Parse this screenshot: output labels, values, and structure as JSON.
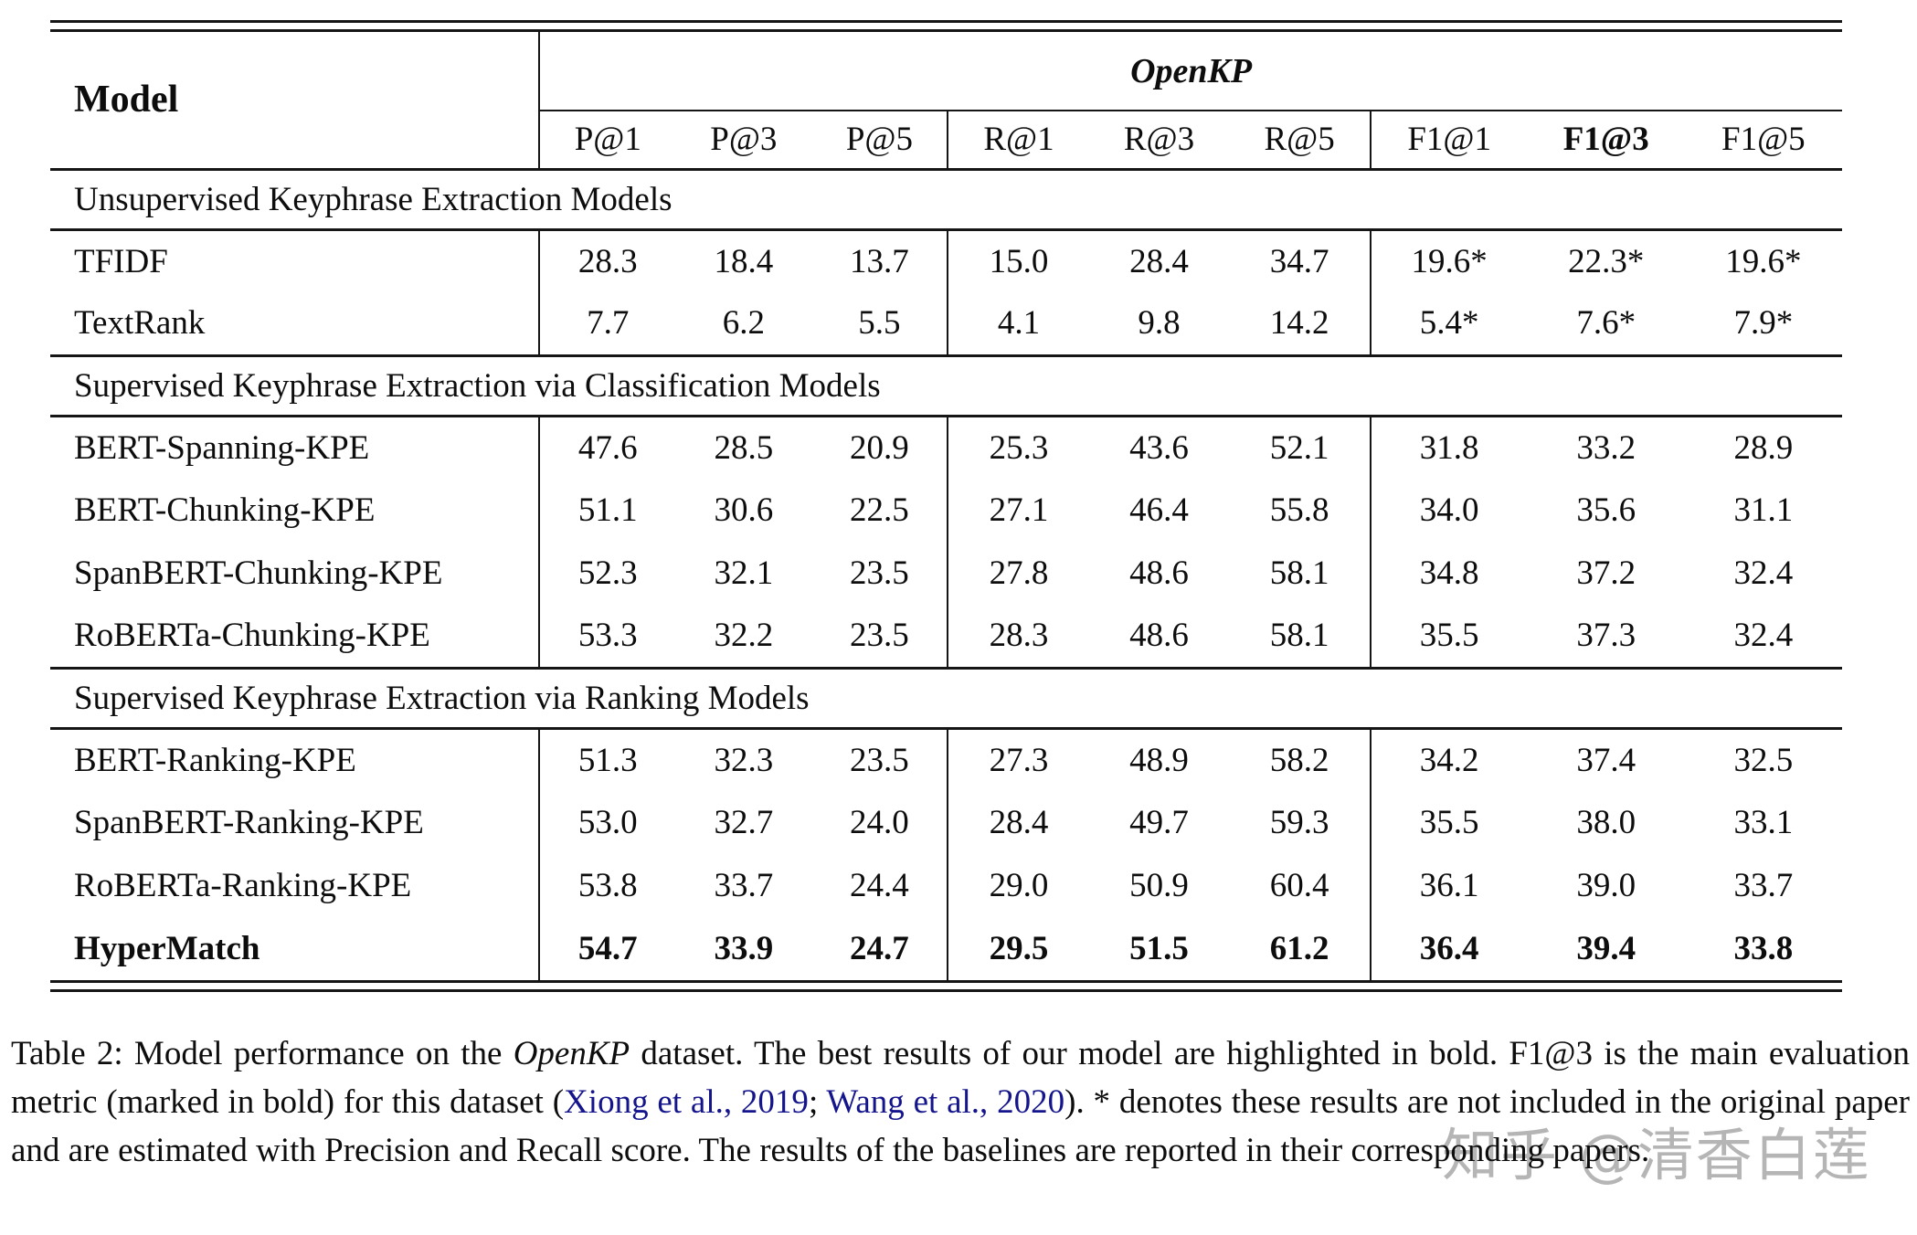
{
  "table": {
    "model_header": "Model",
    "group_header": "OpenKP",
    "metric_headers": [
      "P@1",
      "P@3",
      "P@5",
      "R@1",
      "R@3",
      "R@5",
      "F1@1",
      "F1@3",
      "F1@5"
    ],
    "sections": [
      {
        "title": "Unsupervised Keyphrase Extraction Models",
        "rows": [
          {
            "model": "TFIDF",
            "values": [
              "28.3",
              "18.4",
              "13.7",
              "15.0",
              "28.4",
              "34.7",
              "19.6*",
              "22.3*",
              "19.6*"
            ]
          },
          {
            "model": "TextRank",
            "values": [
              "7.7",
              "6.2",
              "5.5",
              "4.1",
              "9.8",
              "14.2",
              "5.4*",
              "7.6*",
              "7.9*"
            ]
          }
        ]
      },
      {
        "title": "Supervised Keyphrase Extraction via Classification Models",
        "rows": [
          {
            "model": "BERT-Spanning-KPE",
            "values": [
              "47.6",
              "28.5",
              "20.9",
              "25.3",
              "43.6",
              "52.1",
              "31.8",
              "33.2",
              "28.9"
            ]
          },
          {
            "model": "BERT-Chunking-KPE",
            "values": [
              "51.1",
              "30.6",
              "22.5",
              "27.1",
              "46.4",
              "55.8",
              "34.0",
              "35.6",
              "31.1"
            ]
          },
          {
            "model": "SpanBERT-Chunking-KPE",
            "values": [
              "52.3",
              "32.1",
              "23.5",
              "27.8",
              "48.6",
              "58.1",
              "34.8",
              "37.2",
              "32.4"
            ]
          },
          {
            "model": "RoBERTa-Chunking-KPE",
            "values": [
              "53.3",
              "32.2",
              "23.5",
              "28.3",
              "48.6",
              "58.1",
              "35.5",
              "37.3",
              "32.4"
            ]
          }
        ]
      },
      {
        "title": "Supervised Keyphrase Extraction via Ranking Models",
        "rows": [
          {
            "model": "BERT-Ranking-KPE",
            "values": [
              "51.3",
              "32.3",
              "23.5",
              "27.3",
              "48.9",
              "58.2",
              "34.2",
              "37.4",
              "32.5"
            ]
          },
          {
            "model": "SpanBERT-Ranking-KPE",
            "values": [
              "53.0",
              "32.7",
              "24.0",
              "28.4",
              "49.7",
              "59.3",
              "35.5",
              "38.0",
              "33.1"
            ]
          },
          {
            "model": "RoBERTa-Ranking-KPE",
            "values": [
              "53.8",
              "33.7",
              "24.4",
              "29.0",
              "50.9",
              "60.4",
              "36.1",
              "39.0",
              "33.7"
            ]
          },
          {
            "model": "HyperMatch",
            "values": [
              "54.7",
              "33.9",
              "24.7",
              "29.5",
              "51.5",
              "61.2",
              "36.4",
              "39.4",
              "33.8"
            ]
          }
        ]
      }
    ]
  },
  "caption": {
    "prefix": "Table 2: Model performance on the ",
    "dataset_italic": "OpenKP",
    "mid": " dataset.  The best results of our model are highlighted in bold. F1@3 is the main evaluation metric (marked in bold) for this dataset (",
    "cite1": "Xiong et al., 2019",
    "cite_sep": "; ",
    "cite2": "Wang et al., 2020",
    "tail": ").  * denotes these results are not included in the original paper and are estimated with Precision and Recall score.  The results of the baselines are reported in their corresponding papers."
  },
  "watermark": {
    "text": "知乎 @清香白莲"
  },
  "colors": {
    "citation_blue": "#14148C",
    "watermark_gray": "#b5b5b5",
    "rule_black": "#151515"
  }
}
